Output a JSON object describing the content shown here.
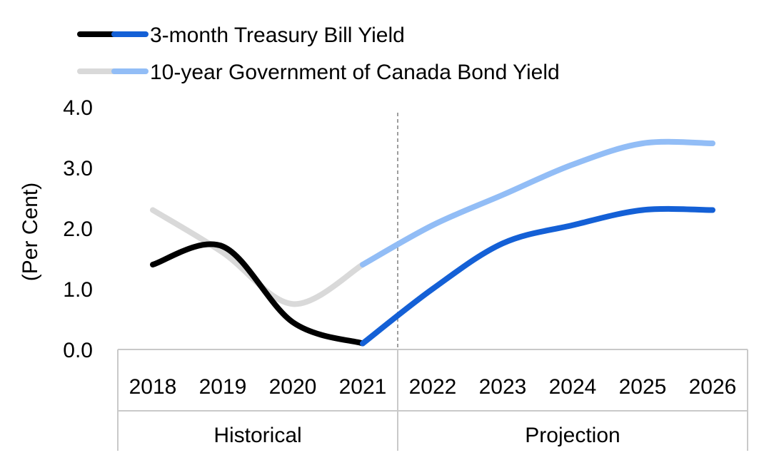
{
  "chart_data": {
    "type": "line",
    "categories": [
      "2018",
      "2019",
      "2020",
      "2021",
      "2022",
      "2023",
      "2024",
      "2025",
      "2026"
    ],
    "groups": [
      {
        "label": "Historical",
        "categories": [
          "2018",
          "2019",
          "2020",
          "2021"
        ]
      },
      {
        "label": "Projection",
        "categories": [
          "2022",
          "2023",
          "2024",
          "2025",
          "2026"
        ]
      }
    ],
    "series": [
      {
        "name": "3-month Treasury Bill Yield",
        "values": [
          1.4,
          1.7,
          0.45,
          0.1,
          1.0,
          1.75,
          2.05,
          2.3,
          2.3
        ],
        "historical_color": "#000000",
        "projection_color": "#1460d6"
      },
      {
        "name": "10-year Government of Canada Bond Yield",
        "values": [
          2.3,
          1.6,
          0.75,
          1.4,
          2.05,
          2.55,
          3.05,
          3.4,
          3.4
        ],
        "historical_color": "#d9d9d9",
        "projection_color": "#92bdf6"
      }
    ],
    "ylabel": "(Per Cent)",
    "ylim": [
      0,
      4
    ],
    "yticks": [
      "0.0",
      "1.0",
      "2.0",
      "3.0",
      "4.0"
    ],
    "projection_start_after": "2021",
    "legend_position": "top-left",
    "grid": false
  }
}
